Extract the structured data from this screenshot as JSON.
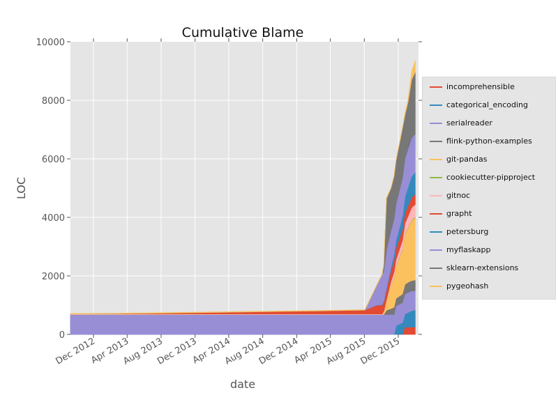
{
  "chart_data": {
    "type": "area",
    "stacked": true,
    "title": "Cumulative Blame",
    "xlabel": "date",
    "ylabel": "LOC",
    "ylim": [
      0,
      10000
    ],
    "yticks": [
      0,
      2000,
      4000,
      6000,
      8000,
      10000
    ],
    "xlim": [
      "2012-09-09",
      "2016-02-12"
    ],
    "xticks": [
      {
        "date": "2012-12-01",
        "label": "Dec 2012"
      },
      {
        "date": "2013-04-01",
        "label": "Apr 2013"
      },
      {
        "date": "2013-08-01",
        "label": "Aug 2013"
      },
      {
        "date": "2013-12-01",
        "label": "Dec 2013"
      },
      {
        "date": "2014-04-01",
        "label": "Apr 2014"
      },
      {
        "date": "2014-08-01",
        "label": "Aug 2014"
      },
      {
        "date": "2014-12-01",
        "label": "Dec 2014"
      },
      {
        "date": "2015-04-01",
        "label": "Apr 2015"
      },
      {
        "date": "2015-08-01",
        "label": "Aug 2015"
      },
      {
        "date": "2015-12-01",
        "label": "Dec 2015"
      }
    ],
    "grid": true,
    "legend_position": "right-outside",
    "background": "#e5e5e5",
    "x": [
      "2012-09-09",
      "2013-03-01",
      "2013-09-01",
      "2014-03-01",
      "2014-09-01",
      "2015-03-01",
      "2015-08-03",
      "2015-09-14",
      "2015-10-04",
      "2015-10-10",
      "2015-10-20",
      "2015-11-05",
      "2015-11-16",
      "2015-11-23",
      "2015-12-16",
      "2015-12-25",
      "2016-01-05",
      "2016-01-18",
      "2016-01-31"
    ],
    "series": [
      {
        "name": "incomprehensible",
        "color": "#E24A33",
        "values": [
          0,
          0,
          0,
          0,
          0,
          0,
          0,
          0,
          0,
          0,
          0,
          0,
          0,
          0,
          0,
          250,
          250,
          250,
          250
        ]
      },
      {
        "name": "categorical_encoding",
        "color": "#348ABD",
        "values": [
          0,
          0,
          0,
          0,
          0,
          0,
          0,
          0,
          0,
          0,
          0,
          0,
          0,
          300,
          400,
          450,
          500,
          560,
          580
        ]
      },
      {
        "name": "serialreader",
        "color": "#988ED5",
        "values": [
          680,
          680,
          680,
          680,
          680,
          680,
          680,
          680,
          680,
          680,
          680,
          680,
          680,
          680,
          680,
          680,
          680,
          670,
          670
        ]
      },
      {
        "name": "flink-python-examples",
        "color": "#777777",
        "values": [
          0,
          0,
          0,
          0,
          0,
          0,
          0,
          0,
          0,
          0,
          150,
          200,
          250,
          250,
          300,
          330,
          350,
          360,
          360
        ]
      },
      {
        "name": "git-pandas",
        "color": "#FBC15E",
        "values": [
          0,
          0,
          0,
          0,
          0,
          0,
          0,
          0,
          0,
          80,
          300,
          800,
          1000,
          1100,
          1500,
          1700,
          1850,
          2050,
          2120
        ]
      },
      {
        "name": "cookiecutter-pipproject",
        "color": "#8EBA42",
        "values": [
          0,
          0,
          0,
          0,
          0,
          0,
          0,
          0,
          0,
          0,
          10,
          20,
          25,
          25,
          30,
          30,
          30,
          30,
          30
        ]
      },
      {
        "name": "gitnoc",
        "color": "#FFB5B8",
        "values": [
          20,
          20,
          20,
          20,
          20,
          20,
          20,
          20,
          20,
          30,
          60,
          120,
          180,
          200,
          300,
          350,
          380,
          420,
          430
        ]
      },
      {
        "name": "grapht",
        "color": "#E24A33",
        "values": [
          0,
          10,
          30,
          55,
          80,
          105,
          130,
          300,
          300,
          320,
          340,
          380,
          400,
          400,
          380,
          360,
          350,
          350,
          350
        ]
      },
      {
        "name": "petersburg",
        "color": "#348ABD",
        "values": [
          0,
          0,
          0,
          0,
          0,
          0,
          0,
          0,
          20,
          40,
          60,
          100,
          200,
          250,
          450,
          550,
          650,
          720,
          750
        ]
      },
      {
        "name": "myflaskapp",
        "color": "#988ED5",
        "values": [
          0,
          0,
          0,
          0,
          0,
          0,
          0,
          665,
          1035,
          1000,
          1300,
          1250,
          1200,
          1250,
          1300,
          1300,
          1300,
          1310,
          1310
        ]
      },
      {
        "name": "sklearn-extensions",
        "color": "#777777",
        "values": [
          0,
          0,
          0,
          0,
          0,
          0,
          0,
          0,
          0,
          200,
          1750,
          1450,
          1475,
          1480,
          1700,
          1500,
          1600,
          2000,
          2120
        ]
      },
      {
        "name": "pygeohash",
        "color": "#FBC15E",
        "values": [
          15,
          15,
          15,
          15,
          15,
          15,
          15,
          15,
          15,
          15,
          20,
          20,
          20,
          20,
          30,
          50,
          80,
          260,
          390
        ]
      }
    ]
  }
}
